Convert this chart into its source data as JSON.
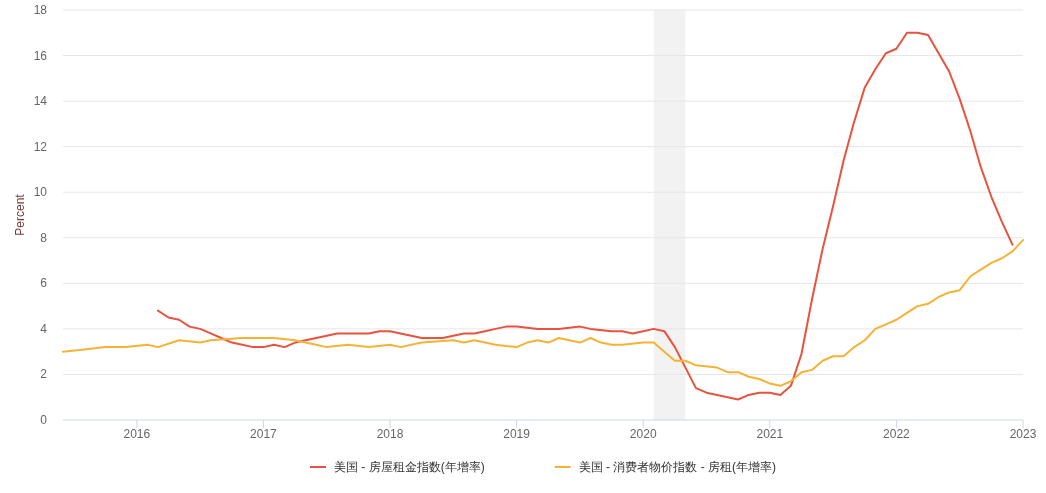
{
  "chart_data": {
    "type": "line",
    "ylabel": "Percent",
    "xlim": [
      "2015-06",
      "2023-01"
    ],
    "xticks": [
      "2016",
      "2017",
      "2018",
      "2019",
      "2020",
      "2021",
      "2022",
      "2023"
    ],
    "ylim": [
      0,
      18
    ],
    "yticks": [
      0,
      2,
      4,
      6,
      8,
      10,
      12,
      14,
      16,
      18
    ],
    "grid": "y",
    "legend": "bottom",
    "bands": [
      {
        "axis": "x",
        "from": "2020-02",
        "to": "2020-05",
        "color": "#f2f2f2"
      }
    ],
    "series": [
      {
        "name": "美国 - 房屋租金指数(年增率)",
        "color": "#e8533f",
        "x": [
          "2016-03",
          "2016-04",
          "2016-05",
          "2016-06",
          "2016-07",
          "2016-08",
          "2016-09",
          "2016-10",
          "2016-11",
          "2016-12",
          "2017-01",
          "2017-02",
          "2017-03",
          "2017-04",
          "2017-05",
          "2017-06",
          "2017-07",
          "2017-08",
          "2017-09",
          "2017-10",
          "2017-11",
          "2017-12",
          "2018-01",
          "2018-02",
          "2018-03",
          "2018-04",
          "2018-05",
          "2018-06",
          "2018-07",
          "2018-08",
          "2018-09",
          "2018-10",
          "2018-11",
          "2018-12",
          "2019-01",
          "2019-03",
          "2019-05",
          "2019-07",
          "2019-08",
          "2019-10",
          "2019-11",
          "2019-12",
          "2020-01",
          "2020-02",
          "2020-03",
          "2020-04",
          "2020-05",
          "2020-06",
          "2020-07",
          "2020-08",
          "2020-09",
          "2020-10",
          "2020-11",
          "2020-12",
          "2021-01",
          "2021-02",
          "2021-03",
          "2021-04",
          "2021-05",
          "2021-06",
          "2021-07",
          "2021-08",
          "2021-09",
          "2021-10",
          "2021-11",
          "2021-12",
          "2022-01",
          "2022-02",
          "2022-03",
          "2022-04",
          "2022-05",
          "2022-06",
          "2022-07",
          "2022-08",
          "2022-09",
          "2022-10",
          "2022-11",
          "2022-12"
        ],
        "values": [
          4.8,
          4.5,
          4.4,
          4.1,
          4.0,
          3.8,
          3.6,
          3.4,
          3.3,
          3.2,
          3.2,
          3.3,
          3.2,
          3.4,
          3.5,
          3.6,
          3.7,
          3.8,
          3.8,
          3.8,
          3.8,
          3.9,
          3.9,
          3.8,
          3.7,
          3.6,
          3.6,
          3.6,
          3.7,
          3.8,
          3.8,
          3.9,
          4.0,
          4.1,
          4.1,
          4.0,
          4.0,
          4.1,
          4.0,
          3.9,
          3.9,
          3.8,
          3.9,
          4.0,
          3.9,
          3.2,
          2.3,
          1.4,
          1.2,
          1.1,
          1.0,
          0.9,
          1.1,
          1.2,
          1.2,
          1.1,
          1.5,
          2.9,
          5.3,
          7.5,
          9.4,
          11.4,
          13.1,
          14.6,
          15.4,
          16.1,
          16.3,
          17.0,
          17.0,
          16.9,
          16.1,
          15.3,
          14.1,
          12.7,
          11.1,
          9.8,
          8.7,
          7.7
        ]
      },
      {
        "name": "美国 - 消费者物价指数 - 房租(年增率)",
        "color": "#f5b335",
        "x": [
          "2015-06",
          "2015-08",
          "2015-10",
          "2015-12",
          "2016-02",
          "2016-03",
          "2016-05",
          "2016-07",
          "2016-08",
          "2016-11",
          "2017-01",
          "2017-02",
          "2017-04",
          "2017-06",
          "2017-07",
          "2017-09",
          "2017-11",
          "2018-01",
          "2018-02",
          "2018-04",
          "2018-07",
          "2018-08",
          "2018-09",
          "2018-11",
          "2019-01",
          "2019-02",
          "2019-03",
          "2019-04",
          "2019-05",
          "2019-06",
          "2019-07",
          "2019-08",
          "2019-09",
          "2019-10",
          "2019-11",
          "2020-01",
          "2020-02",
          "2020-03",
          "2020-04",
          "2020-05",
          "2020-06",
          "2020-08",
          "2020-09",
          "2020-10",
          "2020-11",
          "2020-12",
          "2021-01",
          "2021-02",
          "2021-03",
          "2021-04",
          "2021-05",
          "2021-06",
          "2021-07",
          "2021-08",
          "2021-09",
          "2021-10",
          "2021-11",
          "2021-12",
          "2022-01",
          "2022-02",
          "2022-03",
          "2022-04",
          "2022-05",
          "2022-06",
          "2022-07",
          "2022-08",
          "2022-09",
          "2022-10",
          "2022-11",
          "2022-12",
          "2023-01"
        ],
        "values": [
          3.0,
          3.1,
          3.2,
          3.2,
          3.3,
          3.2,
          3.5,
          3.4,
          3.5,
          3.6,
          3.6,
          3.6,
          3.5,
          3.3,
          3.2,
          3.3,
          3.2,
          3.3,
          3.2,
          3.4,
          3.5,
          3.4,
          3.5,
          3.3,
          3.2,
          3.4,
          3.5,
          3.4,
          3.6,
          3.5,
          3.4,
          3.6,
          3.4,
          3.3,
          3.3,
          3.4,
          3.4,
          3.0,
          2.6,
          2.6,
          2.4,
          2.3,
          2.1,
          2.1,
          1.9,
          1.8,
          1.6,
          1.5,
          1.7,
          2.1,
          2.2,
          2.6,
          2.8,
          2.8,
          3.2,
          3.5,
          4.0,
          4.2,
          4.4,
          4.7,
          5.0,
          5.1,
          5.4,
          5.6,
          5.7,
          6.3,
          6.6,
          6.9,
          7.1,
          7.4,
          7.9
        ]
      }
    ]
  }
}
